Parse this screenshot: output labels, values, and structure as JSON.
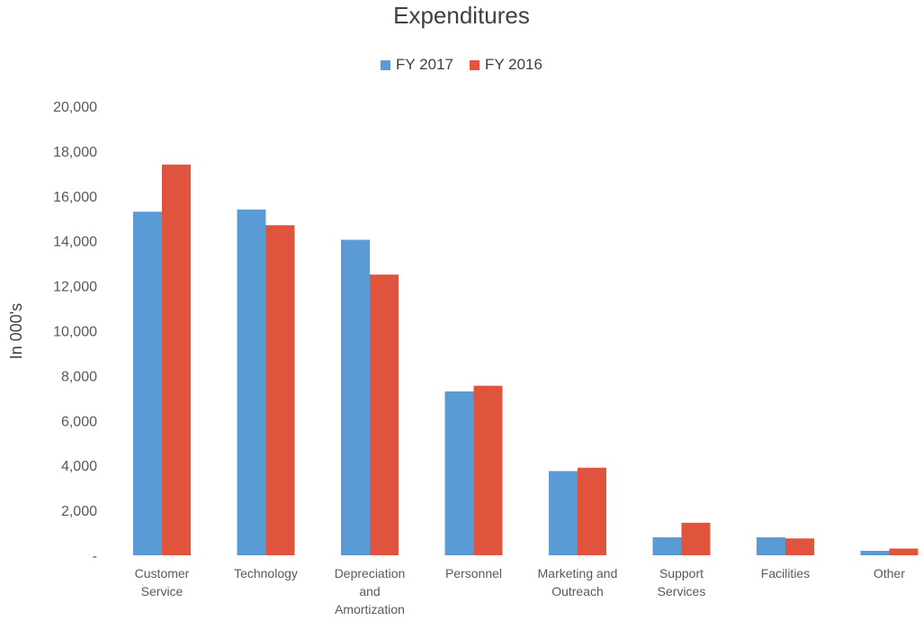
{
  "chart_data": {
    "type": "bar",
    "title": "Expenditures",
    "ylabel": "In 000's",
    "xlabel": "",
    "ylim": [
      0,
      20000
    ],
    "yticks": [
      0,
      2000,
      4000,
      6000,
      8000,
      10000,
      12000,
      14000,
      16000,
      18000,
      20000
    ],
    "ytick_labels": [
      "-",
      "2,000",
      "4,000",
      "6,000",
      "8,000",
      "10,000",
      "12,000",
      "14,000",
      "16,000",
      "18,000",
      "20,000"
    ],
    "categories": [
      [
        "Customer",
        "Service"
      ],
      [
        "Technology"
      ],
      [
        "Depreciation",
        "and",
        "Amortization"
      ],
      [
        "Personnel"
      ],
      [
        "Marketing and",
        "Outreach"
      ],
      [
        "Support",
        "Services"
      ],
      [
        "Facilities"
      ],
      [
        "Other"
      ]
    ],
    "series": [
      {
        "name": "FY 2017",
        "color": "#5b9bd5",
        "values": [
          15300,
          15400,
          14050,
          7300,
          3750,
          800,
          800,
          200
        ]
      },
      {
        "name": "FY 2016",
        "color": "#e0533c",
        "values": [
          17400,
          14700,
          12500,
          7550,
          3900,
          1450,
          750,
          300
        ]
      }
    ],
    "legend_position": "top-center",
    "grid": false
  }
}
